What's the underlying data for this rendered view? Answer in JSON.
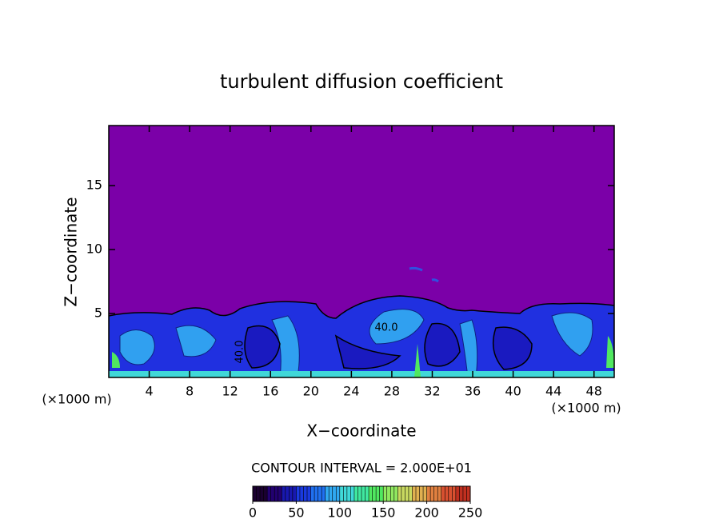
{
  "chart_data": {
    "type": "contour",
    "title": "turbulent diffusion coefficient",
    "x_label": "X−coordinate",
    "y_label": "Z−coordinate",
    "x_unit": "(×1000 m)",
    "y_unit": "(×1000 m)",
    "xlim": [
      0,
      50
    ],
    "ylim": [
      0,
      19.7
    ],
    "xticks": [
      4,
      8,
      12,
      16,
      20,
      24,
      28,
      32,
      36,
      40,
      44,
      48
    ],
    "yticks": [
      5,
      10,
      15
    ],
    "background_color": "#7b00a8",
    "annotations": [
      "40.0",
      "40.0"
    ],
    "contour_interval_label": "CONTOUR INTERVAL = 2.000E+01",
    "colorbar": {
      "lim": [
        0,
        250
      ],
      "ticks": [
        0,
        50,
        100,
        150,
        200,
        250
      ],
      "colors": [
        "#1a0030",
        "#220070",
        "#1818b0",
        "#1a3ae0",
        "#2070f0",
        "#30a8f0",
        "#40d8d8",
        "#40e8a0",
        "#50e860",
        "#90e860",
        "#c8d860",
        "#e0b050",
        "#e08040",
        "#d85030",
        "#c03020"
      ]
    }
  }
}
